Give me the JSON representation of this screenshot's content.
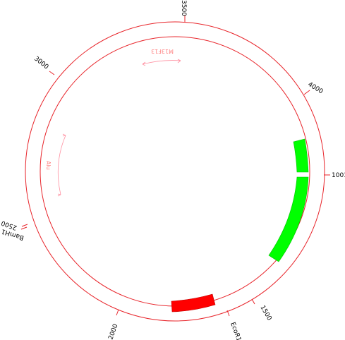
{
  "plasmid_map": {
    "colors": {
      "ring": "#e8242a",
      "feature_green": "#00ff00",
      "feature_green_stroke": "#00c000",
      "feature_red": "#ff0000",
      "feature_red_stroke": "#c00000",
      "annotation_pink": "#ff8fa0"
    },
    "scale_ticks": [
      {
        "label": "3500"
      },
      {
        "label": "4000"
      },
      {
        "label": "1001"
      },
      {
        "label": "1500"
      },
      {
        "label": "2000"
      },
      {
        "label": "2500"
      },
      {
        "label": "3000"
      }
    ],
    "sites": [
      {
        "label": "EcoR1"
      },
      {
        "label": "BamH1"
      }
    ],
    "features": [
      {
        "kind": "green-segment-1"
      },
      {
        "kind": "green-segment-2"
      },
      {
        "kind": "red-segment"
      }
    ],
    "annotations": [
      {
        "label": "M13F13"
      },
      {
        "label": "Alu"
      }
    ]
  }
}
